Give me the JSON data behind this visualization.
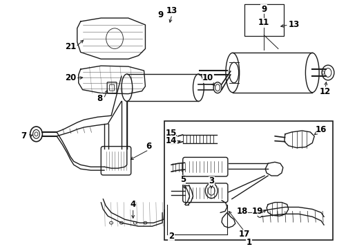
{
  "bg_color": "#ffffff",
  "line_color": "#1a1a1a",
  "label_color": "#000000",
  "fig_width": 4.89,
  "fig_height": 3.6,
  "dpi": 100,
  "label_font_size": 8.5
}
